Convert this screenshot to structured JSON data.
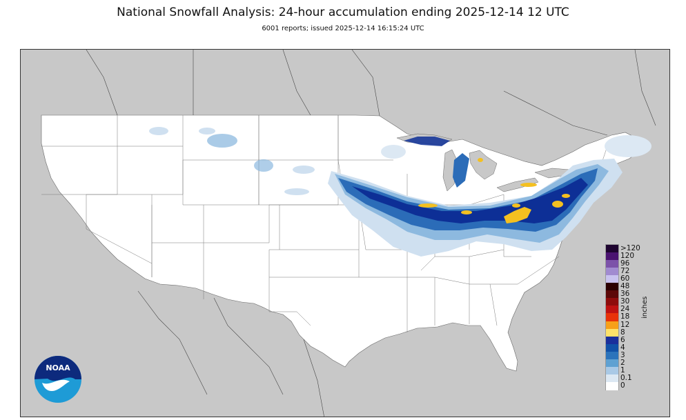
{
  "header": {
    "title": "National Snowfall Analysis: 24-hour accumulation ending 2025-12-14 12 UTC",
    "subtitle": "6001 reports; issued 2025-12-14 16:15:24 UTC"
  },
  "legend": {
    "units": "inches",
    "labels": [
      ">120",
      "120",
      "96",
      "72",
      "60",
      "48",
      "36",
      "30",
      "24",
      "18",
      "12",
      "8",
      "6",
      "4",
      "3",
      "2",
      "1",
      "0.1",
      "0"
    ],
    "colors": [
      "#1e0430",
      "#4a1370",
      "#7c52a9",
      "#a18bd0",
      "#c9c3ef",
      "#2b0000",
      "#5c0808",
      "#8e0c0c",
      "#bf1212",
      "#e8320a",
      "#f7a019",
      "#fde26a",
      "#1a2f9c",
      "#1151a8",
      "#2b73bb",
      "#5fa1d2",
      "#a9c9e6",
      "#dce8f3",
      "#ffffff"
    ]
  },
  "logo": {
    "text": "NOAA"
  },
  "colors": {
    "land_outside": "#c8c8c8",
    "conus": "#ffffff",
    "heavy_snow": "#0d2f96",
    "moderate_snow": "#2b6cb8",
    "light_snow": "#8db9df",
    "trace_snow": "#cfe0f0",
    "max_snow": "#f4c020"
  }
}
